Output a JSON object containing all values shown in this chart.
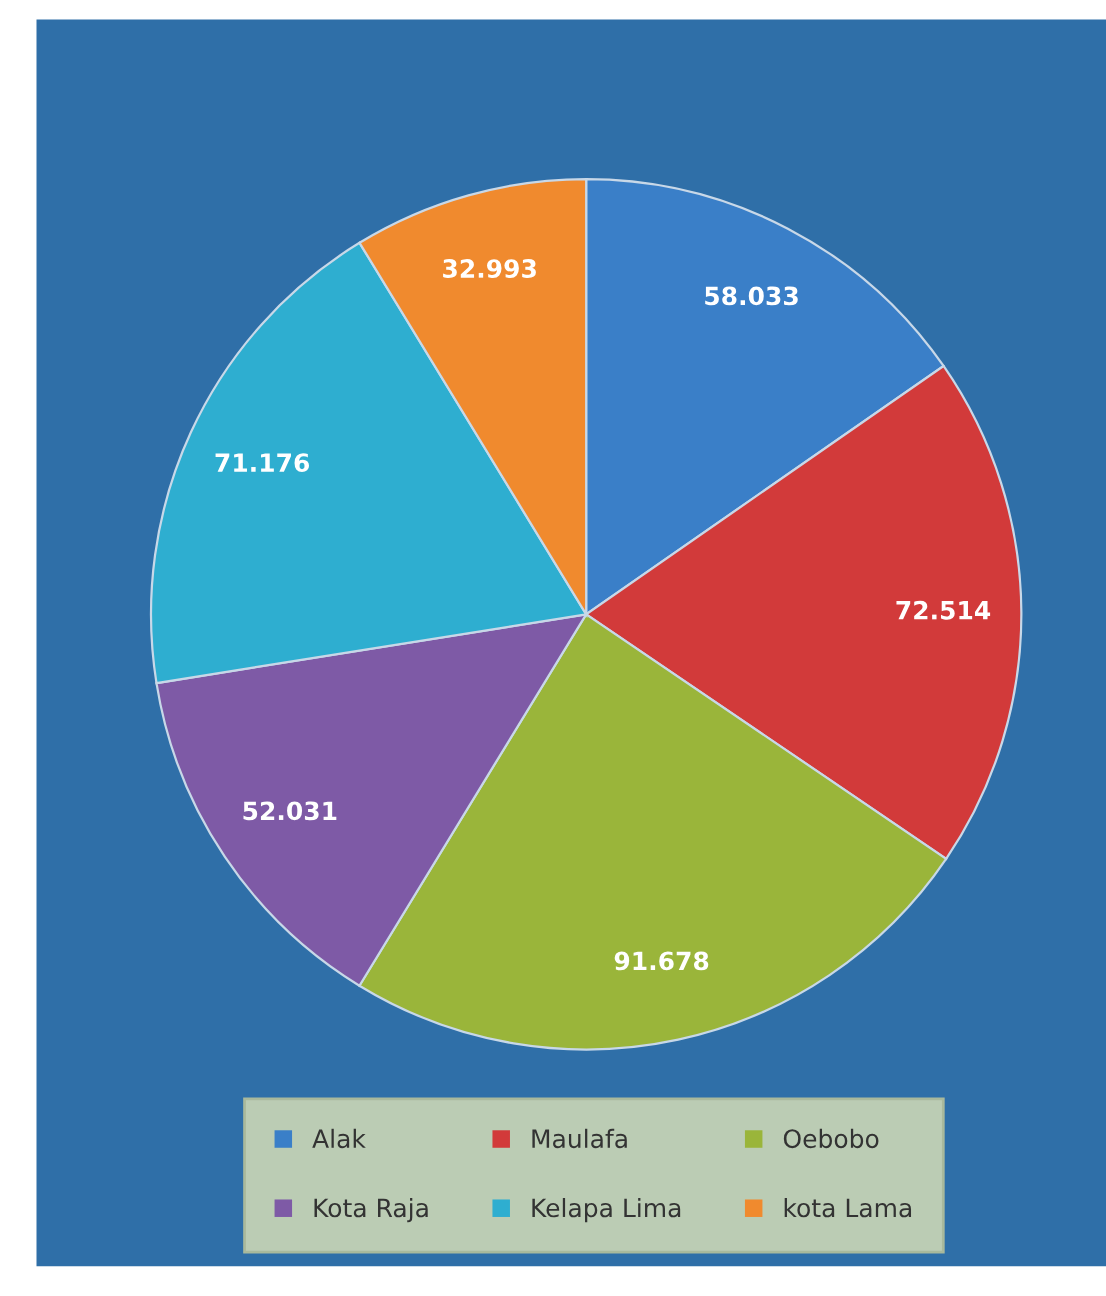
{
  "chart_data": {
    "type": "pie",
    "categories": [
      "Alak",
      "Maulafa",
      "Oebobo",
      "Kota Raja",
      "Kelapa Lima",
      "kota Lama"
    ],
    "values": [
      58.033,
      72.514,
      91.678,
      52.031,
      71.176,
      32.993
    ],
    "colors": [
      "#3a7fc8",
      "#d23a3a",
      "#9ab53a",
      "#7e5aa6",
      "#2eaed0",
      "#f08a2e"
    ],
    "value_labels": [
      "58.033",
      "72.514",
      "91.678",
      "52.031",
      "71.176",
      "32.993"
    ],
    "legend": "bottom"
  }
}
